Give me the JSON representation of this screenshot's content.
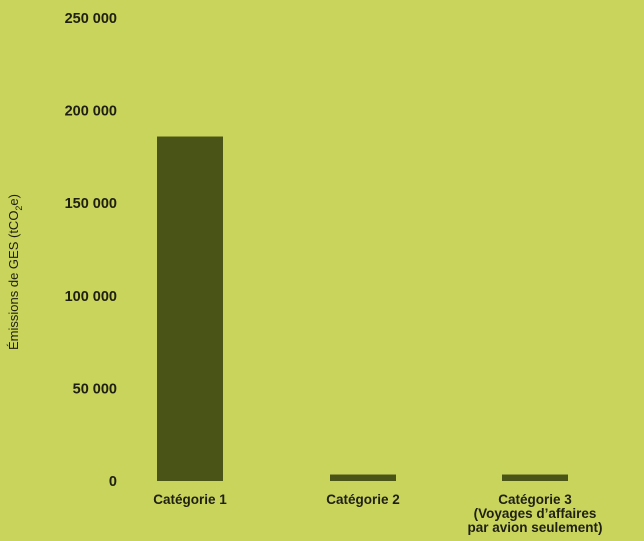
{
  "colors": {
    "background": "#c9d45c",
    "bar": "#4a5416",
    "text": "#1f1f12"
  },
  "chart_data": {
    "type": "bar",
    "ylabel_main": "Émissions de GES (tCO",
    "ylabel_sub": "2",
    "ylabel_end": "e)",
    "ylim": [
      0,
      250000
    ],
    "yticks": [
      {
        "value": 0,
        "label": "0"
      },
      {
        "value": 50000,
        "label": "50 000"
      },
      {
        "value": 100000,
        "label": "100 000"
      },
      {
        "value": 150000,
        "label": "150 000"
      },
      {
        "value": 200000,
        "label": "200 000"
      },
      {
        "value": 250000,
        "label": "250 000"
      }
    ],
    "categories": [
      {
        "lines": [
          "Catégorie 1"
        ]
      },
      {
        "lines": [
          "Catégorie 2"
        ]
      },
      {
        "lines": [
          "Catégorie 3",
          "(Voyages d’affaires",
          "par avion seulement)"
        ]
      }
    ],
    "values": [
      186000,
      3500,
      3500
    ],
    "grid": false,
    "legend": "none"
  }
}
